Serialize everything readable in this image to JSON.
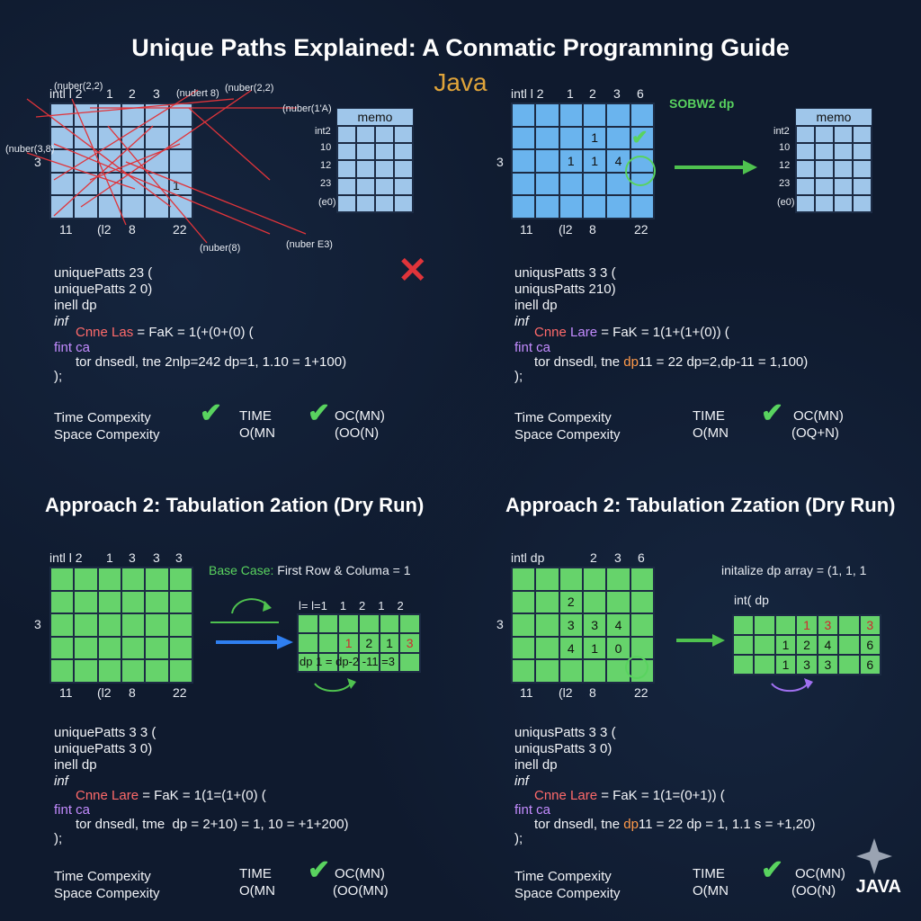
{
  "title": "Unique Paths Explained: A Conmatic Programning Guide",
  "subtitle": "Java",
  "tl": {
    "top_label": "intl l 2",
    "cols": [
      "1",
      "2",
      "3"
    ],
    "row_label": "3",
    "bottom_labels": [
      "11",
      "(l2",
      "8",
      "22"
    ],
    "cell_value": "1",
    "memo_title": "memo",
    "memo_rows": [
      "int2",
      "10",
      "12",
      "23",
      "(e0)"
    ],
    "arrow_labels": [
      "(nuber(2,2)",
      "(nudert 8)",
      "(nuber(2,2)",
      "(nuber(1'A)",
      "(nuber(3,8)",
      "(nuber(8)",
      "(nuber E3)"
    ],
    "code": [
      "uniquePatts 23 (",
      "uniquePatts 2 0)",
      "inell dp",
      "inf"
    ],
    "code_line5a": "Cnne Las",
    "code_line5b": " = FaK = 1(+(0+(0) (",
    "code_line6": "fint ca",
    "code_line7": "tor dnsedl, tne 2nlp=242 dp=1, 1.10 = 1+100)",
    "code_line8": ");",
    "time_label": "Time Compexity",
    "space_label": "Space Compexity",
    "time_head": "TIME",
    "time_val": "O(MN",
    "oc_head": "OC(MN)",
    "oc_val": "(OO(N)",
    "x_mark": "✕"
  },
  "tr": {
    "top_label": "intl l 2",
    "cols": [
      "1",
      "2",
      "3",
      "6"
    ],
    "row_label": "3",
    "bottom_labels": [
      "11",
      "(l2",
      "8",
      "22"
    ],
    "cells": {
      "r2c4": "1",
      "r3c3": "1",
      "r3c4": "1",
      "r3c5": "4"
    },
    "tag": "SOBW2 dp",
    "memo_title": "memo",
    "memo_rows": [
      "int2",
      "10",
      "12",
      "23",
      "(e0)"
    ],
    "code": [
      "uniqusPatts 3 3 (",
      "uniqusPatts 210)",
      "inell dp",
      "inf"
    ],
    "code_line5a": "Cnne ",
    "code_line5b": "Lare",
    "code_line5c": " = FaK = 1(1+(1+(0)) (",
    "code_line6": "fint ca",
    "code_line7a": "tor dnsedl, tne ",
    "code_line7b": "dp",
    "code_line7c": "11 = 22 dp=2,dp-11 = 1,100)",
    "code_line8": ");",
    "time_label": "Time Compexity",
    "space_label": "Space Compexity",
    "time_head": "TIME",
    "time_val": "O(MN",
    "oc_head": "OC(MN)",
    "oc_val": "(OQ+N)"
  },
  "bl": {
    "section": "Approach 2: Tabulation 2ation (Dry Run)",
    "top_label": "intl l 2",
    "cols": [
      "1",
      "3",
      "3",
      "3"
    ],
    "row_label": "3",
    "bottom_labels": [
      "11",
      "(l2",
      "8",
      "22"
    ],
    "base_case_a": "Base Case:",
    "base_case_b": " First Row & Columa = 1",
    "table_top": [
      "l= l=1",
      "1",
      "2",
      "1",
      "2"
    ],
    "table_mid": [
      "",
      "",
      "1",
      "2",
      "1",
      "3"
    ],
    "table_bot": "dp 1 = dp-2 -11 =3",
    "code": [
      "uniquePatts 3 3 (",
      "uniquePatts 3 0)",
      "inell dp",
      "inf"
    ],
    "code_line5a": "Cnne Lare",
    "code_line5b": " = FaK = 1(1=(1+(0) (",
    "code_line6": "fint ca",
    "code_line7": "tor dnsedl, tme  dp = 2+10) = 1, 10 = +1+200)",
    "code_line8": ");",
    "time_label": "Time Compexity",
    "space_label": "Space Compexity",
    "time_head": "TIME",
    "time_val": "O(MN",
    "oc_head": "OC(MN)",
    "oc_val": "(OO(MN)"
  },
  "br": {
    "section": "Approach 2: Tabulation Zzation (Dry Run)",
    "top_label": "intl dp",
    "cols": [
      "2",
      "3",
      "6"
    ],
    "row_label": "3",
    "bottom_labels": [
      "11",
      "(l2",
      "8",
      "22"
    ],
    "cells": {
      "r2c3": "2",
      "r3c3": "3",
      "r3c4": "3",
      "r3c5": "4",
      "r4c3": "4",
      "r4c4": "1",
      "r4c5": "0"
    },
    "init_text": "initalize dp array = (1, 1, 1",
    "int_dp": "int( dp",
    "table_r1": [
      "",
      "",
      "",
      "1",
      "3",
      "",
      "3"
    ],
    "table_r2": [
      "",
      "",
      "1",
      "2",
      "4",
      "",
      "6"
    ],
    "table_r3": [
      "",
      "",
      "1",
      "3",
      "3",
      "",
      "6"
    ],
    "code": [
      "uniqusPatts 3 3 (",
      "uniqusPatts 3 0)",
      "inell dp",
      "inf"
    ],
    "code_line5a": "Cnne Lare",
    "code_line5b": " = FaK = 1(1=(0+1)) (",
    "code_line6": "fint ca",
    "code_line7a": "tor dnsedl, tne ",
    "code_line7b": "dp",
    "code_line7c": "11 = 22 dp = 1, 1.1 s = +1,20)",
    "code_line8": ");",
    "time_label": "Time Compexity",
    "space_label": "Space Compexity",
    "time_head": "TIME",
    "time_val": "O(MN",
    "oc_head": "OC(MN)",
    "oc_val": "(OO(N)"
  },
  "badge": "JAVA"
}
